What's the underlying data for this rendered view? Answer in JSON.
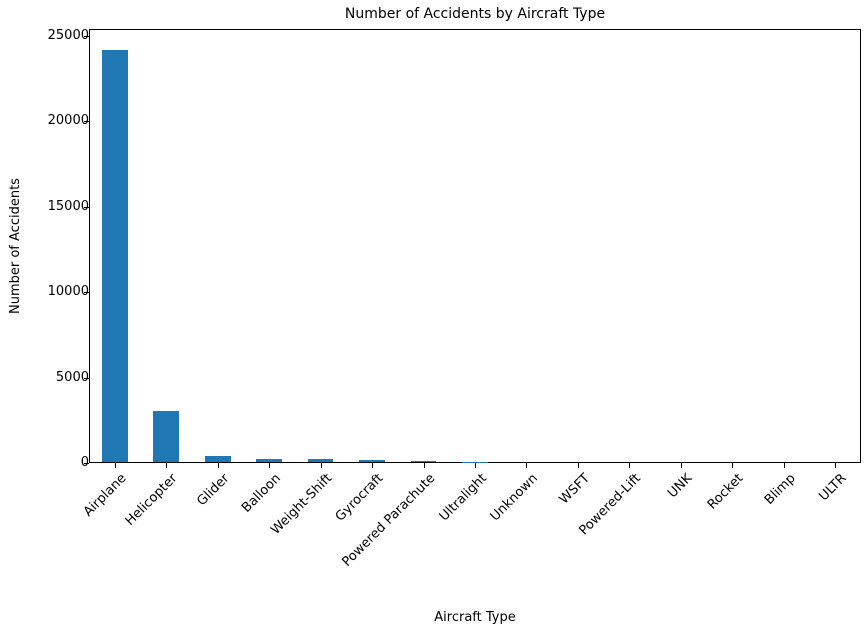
{
  "chart_data": {
    "type": "bar",
    "title": "Number of Accidents by Aircraft Type",
    "xlabel": "Aircraft Type",
    "ylabel": "Number of Accidents",
    "categories": [
      "Airplane",
      "Helicopter",
      "Glider",
      "Balloon",
      "Weight-Shift",
      "Gyrocraft",
      "Powered Parachute",
      "Ultralight",
      "Unknown",
      "WSFT",
      "Powered-Lift",
      "UNK",
      "Rocket",
      "Blimp",
      "ULTR"
    ],
    "values": [
      24100,
      3000,
      375,
      150,
      150,
      95,
      40,
      5,
      3,
      2,
      1,
      1,
      1,
      1,
      1
    ],
    "yticks": [
      "0",
      "5000",
      "10000",
      "15000",
      "20000",
      "25000"
    ],
    "ylim": [
      0,
      25400
    ],
    "grid": false,
    "legend": null,
    "bar_color": "#1f77b4"
  }
}
